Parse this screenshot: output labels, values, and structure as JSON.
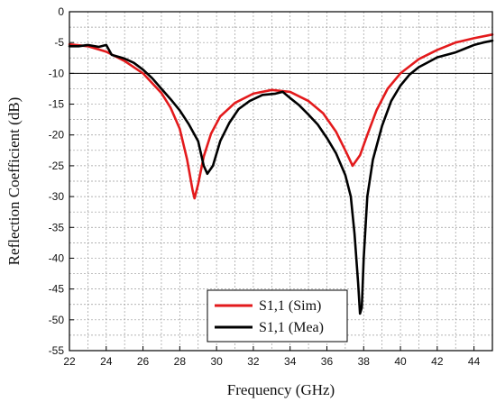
{
  "chart_data": {
    "type": "line",
    "title": "",
    "xlabel": "Frequency (GHz)",
    "ylabel": "Reflection Coefficient (dB)",
    "xlim": [
      22,
      45
    ],
    "ylim": [
      -55,
      0
    ],
    "x_ticks": [
      22,
      24,
      26,
      28,
      30,
      32,
      34,
      36,
      38,
      40,
      42,
      44
    ],
    "x_tick_labels": [
      "22",
      "24",
      "26",
      "28",
      "30",
      "32",
      "34",
      "36",
      "38",
      "40",
      "42",
      "44"
    ],
    "y_ticks": [
      0,
      -5,
      -10,
      -15,
      -20,
      -25,
      -30,
      -35,
      -40,
      -45,
      -50,
      -55
    ],
    "y_tick_labels": [
      "0",
      "-5",
      "-10",
      "-15",
      "-20",
      "-25",
      "-30",
      "-35",
      "-40",
      "-45",
      "-50",
      "-55"
    ],
    "grid": true,
    "reference_line": {
      "y": -10,
      "color": "#000000"
    },
    "legend": {
      "position": "bottom-center"
    },
    "series": [
      {
        "name": "S1,1 (Sim)",
        "color": "#e31a1c",
        "points": [
          [
            22,
            -5.3
          ],
          [
            23,
            -5.6
          ],
          [
            24,
            -6.5
          ],
          [
            25,
            -8.0
          ],
          [
            26,
            -10.0
          ],
          [
            27,
            -13.2
          ],
          [
            27.5,
            -15.6
          ],
          [
            28,
            -19.0
          ],
          [
            28.4,
            -24.0
          ],
          [
            28.7,
            -29.0
          ],
          [
            28.8,
            -30.3
          ],
          [
            29.0,
            -28.0
          ],
          [
            29.3,
            -23.5
          ],
          [
            29.7,
            -19.8
          ],
          [
            30.2,
            -17.0
          ],
          [
            31,
            -14.8
          ],
          [
            32,
            -13.3
          ],
          [
            33,
            -12.7
          ],
          [
            34,
            -13.0
          ],
          [
            35,
            -14.5
          ],
          [
            35.8,
            -16.5
          ],
          [
            36.5,
            -19.5
          ],
          [
            37.0,
            -22.5
          ],
          [
            37.4,
            -25.0
          ],
          [
            37.8,
            -23.3
          ],
          [
            38.2,
            -20.0
          ],
          [
            38.7,
            -16.0
          ],
          [
            39.3,
            -12.5
          ],
          [
            40,
            -10.0
          ],
          [
            41,
            -7.7
          ],
          [
            42,
            -6.2
          ],
          [
            43,
            -5.0
          ],
          [
            44,
            -4.3
          ],
          [
            45,
            -3.7
          ]
        ]
      },
      {
        "name": "S1,1 (Mea)",
        "color": "#000000",
        "points": [
          [
            22,
            -5.6
          ],
          [
            22.5,
            -5.6
          ],
          [
            23,
            -5.4
          ],
          [
            23.6,
            -5.7
          ],
          [
            24,
            -5.4
          ],
          [
            24.3,
            -7.0
          ],
          [
            25,
            -7.6
          ],
          [
            25.5,
            -8.3
          ],
          [
            26,
            -9.4
          ],
          [
            26.5,
            -10.8
          ],
          [
            27,
            -12.5
          ],
          [
            27.5,
            -14.2
          ],
          [
            28,
            -16.0
          ],
          [
            28.5,
            -18.3
          ],
          [
            29.0,
            -21.0
          ],
          [
            29.3,
            -25.0
          ],
          [
            29.5,
            -26.3
          ],
          [
            29.8,
            -25.0
          ],
          [
            30.2,
            -21.0
          ],
          [
            30.7,
            -18.0
          ],
          [
            31.2,
            -15.8
          ],
          [
            31.8,
            -14.5
          ],
          [
            32.5,
            -13.5
          ],
          [
            33.2,
            -13.3
          ],
          [
            33.6,
            -13.0
          ],
          [
            34.0,
            -14.0
          ],
          [
            34.5,
            -15.2
          ],
          [
            35.0,
            -16.7
          ],
          [
            35.5,
            -18.3
          ],
          [
            36.0,
            -20.5
          ],
          [
            36.5,
            -23.0
          ],
          [
            37.0,
            -26.5
          ],
          [
            37.3,
            -30.0
          ],
          [
            37.5,
            -36.0
          ],
          [
            37.7,
            -44.0
          ],
          [
            37.8,
            -49.0
          ],
          [
            37.9,
            -48.0
          ],
          [
            38.0,
            -40.0
          ],
          [
            38.2,
            -30.0
          ],
          [
            38.5,
            -24.0
          ],
          [
            39.0,
            -18.5
          ],
          [
            39.5,
            -14.5
          ],
          [
            40.0,
            -12.0
          ],
          [
            40.5,
            -10.2
          ],
          [
            41.0,
            -9.0
          ],
          [
            41.5,
            -8.2
          ],
          [
            42.0,
            -7.4
          ],
          [
            42.5,
            -7.0
          ],
          [
            43.0,
            -6.6
          ],
          [
            43.5,
            -6.0
          ],
          [
            44.0,
            -5.4
          ],
          [
            44.5,
            -5.0
          ],
          [
            45,
            -4.7
          ]
        ]
      }
    ]
  }
}
